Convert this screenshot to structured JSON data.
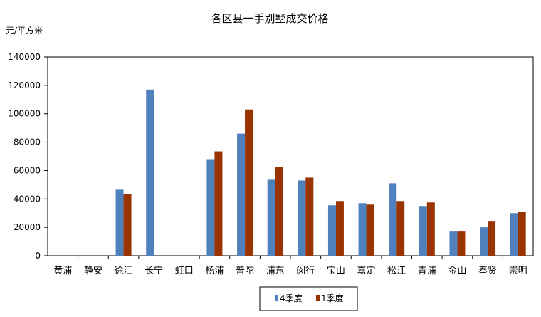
{
  "chart_data": {
    "type": "bar",
    "title": "各区县一手别墅成交价格",
    "ylabel": "元/平方米",
    "xlabel": "",
    "ylim": [
      0,
      140000
    ],
    "yticks": [
      0,
      20000,
      40000,
      60000,
      80000,
      100000,
      120000,
      140000
    ],
    "grid": false,
    "legend_position": "bottom",
    "categories": [
      "黄浦",
      "静安",
      "徐汇",
      "长宁",
      "虹口",
      "杨浦",
      "普陀",
      "浦东",
      "闵行",
      "宝山",
      "嘉定",
      "松江",
      "青浦",
      "金山",
      "奉贤",
      "崇明"
    ],
    "series": [
      {
        "name": "4季度",
        "color": "#4F81BD",
        "values": [
          null,
          null,
          46500,
          117000,
          null,
          68000,
          86000,
          54000,
          53000,
          35500,
          37000,
          51000,
          35000,
          17500,
          20000,
          30000
        ]
      },
      {
        "name": "1季度",
        "color": "#993300",
        "values": [
          null,
          null,
          43500,
          null,
          null,
          73500,
          103000,
          62500,
          55000,
          38500,
          36000,
          38500,
          37500,
          17500,
          24500,
          31000
        ]
      }
    ]
  }
}
